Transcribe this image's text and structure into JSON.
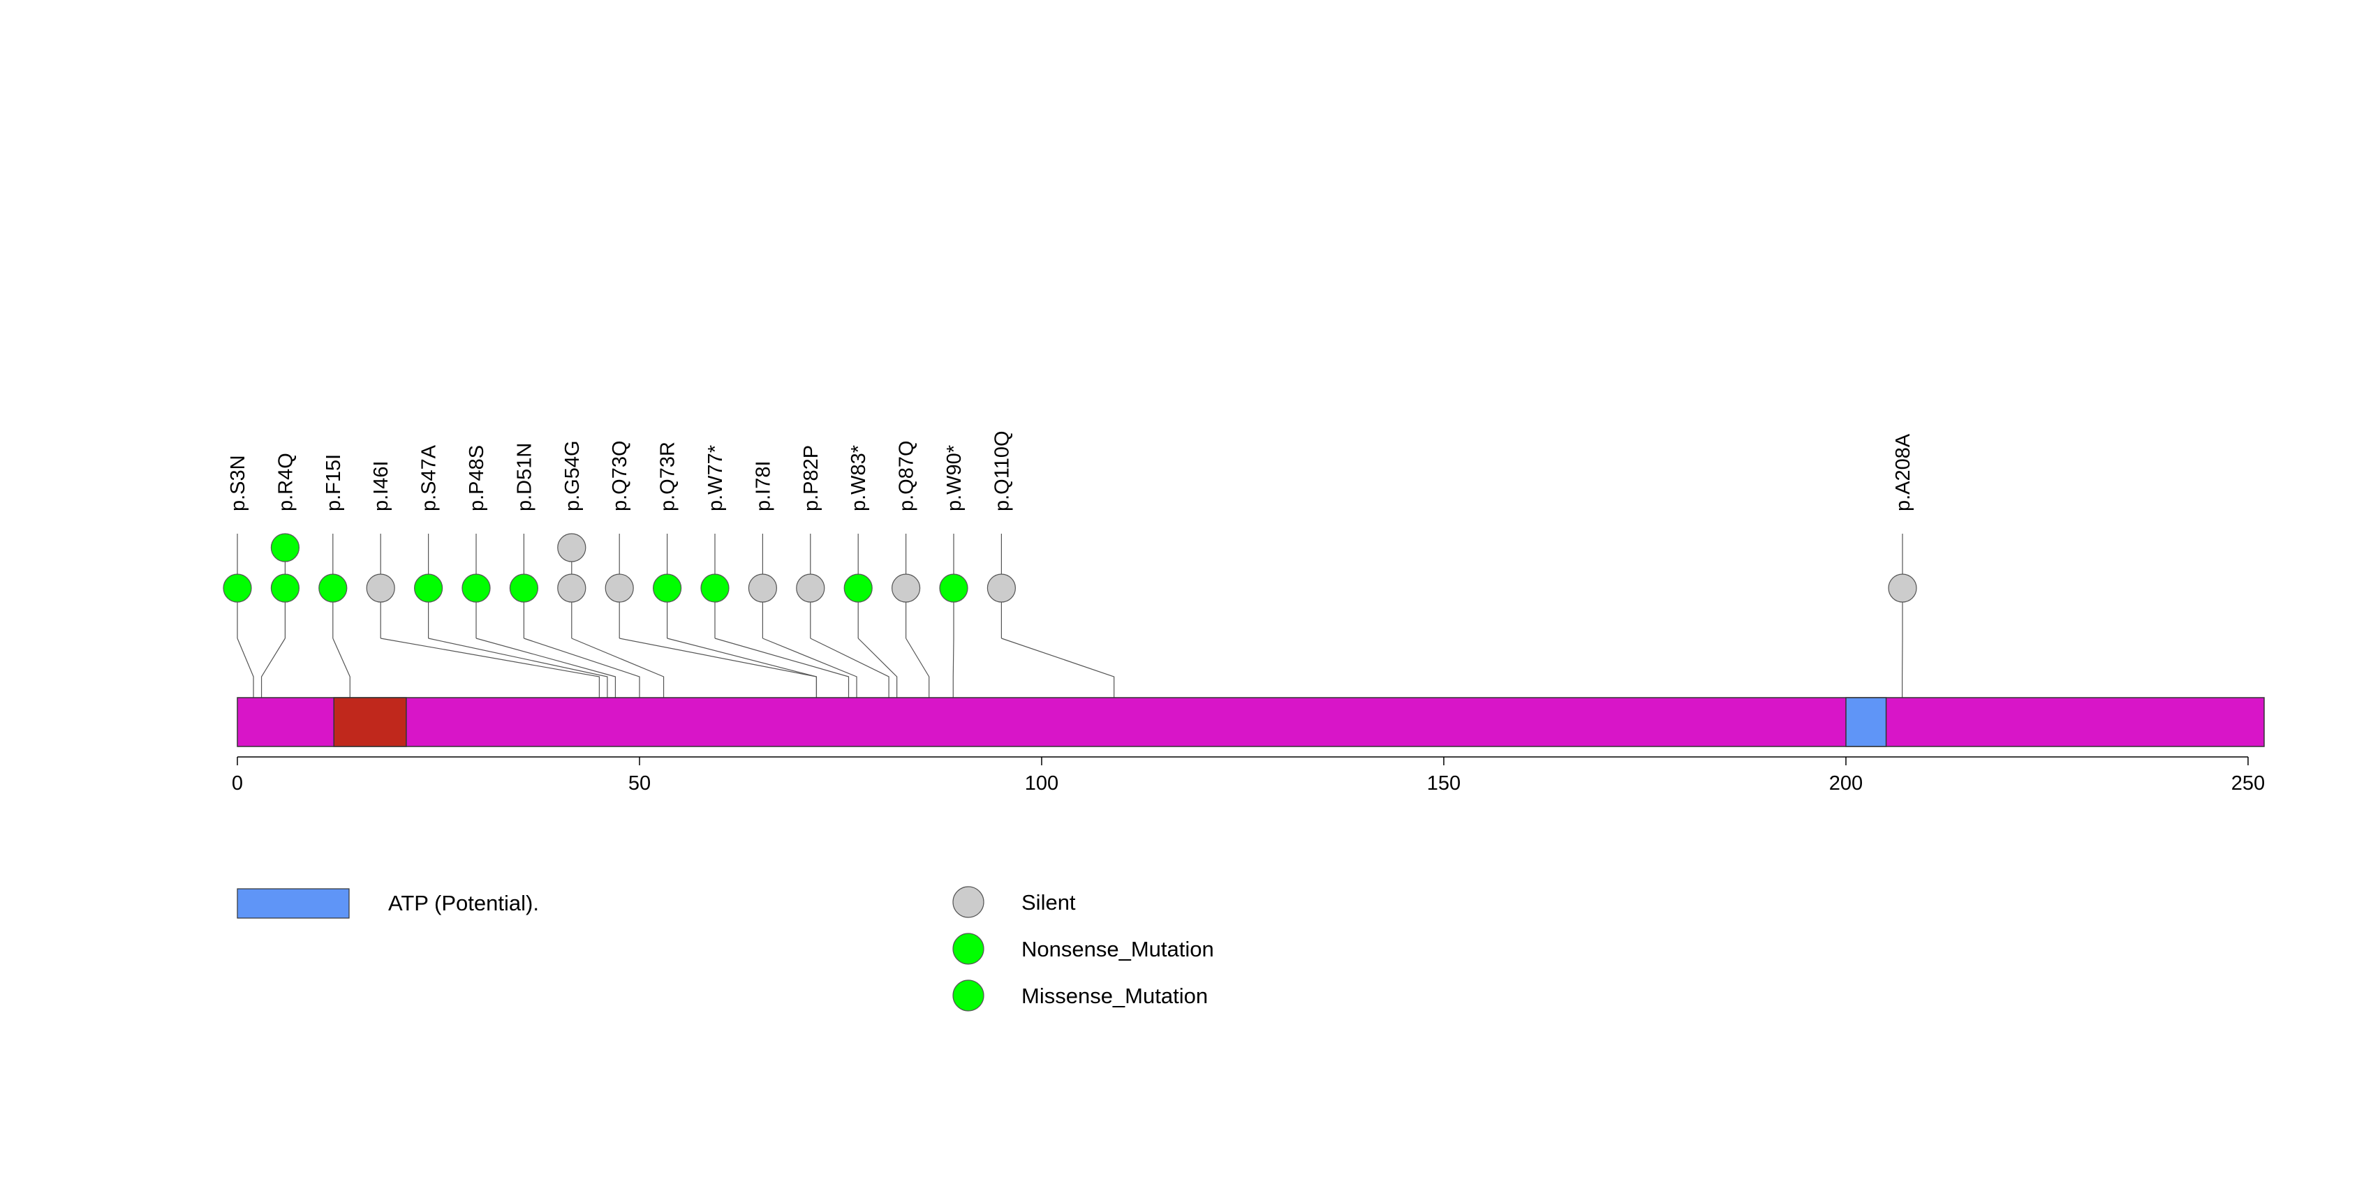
{
  "chart_data": {
    "type": "lollipop",
    "title": "",
    "x_axis": {
      "min": 0,
      "max": 252,
      "ticks": [
        0,
        50,
        100,
        150,
        200,
        250
      ]
    },
    "protein": {
      "length": 252,
      "color": "#d815c8",
      "domains": [
        {
          "name": "",
          "start": 12,
          "end": 21,
          "color": "#c0281c"
        },
        {
          "name": "ATP (Potential).",
          "start": 200,
          "end": 205,
          "color": "#5f95f7"
        }
      ]
    },
    "mutations": [
      {
        "label": "p.S3N",
        "position": 2,
        "stack": [
          {
            "type": "Missense_Mutation"
          }
        ]
      },
      {
        "label": "p.R4Q",
        "position": 3,
        "stack": [
          {
            "type": "Missense_Mutation"
          },
          {
            "type": "Missense_Mutation"
          }
        ]
      },
      {
        "label": "p.F15I",
        "position": 14,
        "stack": [
          {
            "type": "Missense_Mutation"
          }
        ]
      },
      {
        "label": "p.I46I",
        "position": 45,
        "stack": [
          {
            "type": "Silent"
          }
        ]
      },
      {
        "label": "p.S47A",
        "position": 46,
        "stack": [
          {
            "type": "Missense_Mutation"
          }
        ]
      },
      {
        "label": "p.P48S",
        "position": 47,
        "stack": [
          {
            "type": "Missense_Mutation"
          }
        ]
      },
      {
        "label": "p.D51N",
        "position": 50,
        "stack": [
          {
            "type": "Missense_Mutation"
          }
        ]
      },
      {
        "label": "p.G54G",
        "position": 53,
        "stack": [
          {
            "type": "Silent"
          },
          {
            "type": "Silent"
          }
        ]
      },
      {
        "label": "p.Q73Q",
        "position": 72,
        "stack": [
          {
            "type": "Silent"
          }
        ]
      },
      {
        "label": "p.Q73R",
        "position": 72,
        "stack": [
          {
            "type": "Missense_Mutation"
          }
        ]
      },
      {
        "label": "p.W77*",
        "position": 76,
        "stack": [
          {
            "type": "Nonsense_Mutation"
          }
        ]
      },
      {
        "label": "p.I78I",
        "position": 77,
        "stack": [
          {
            "type": "Silent"
          }
        ]
      },
      {
        "label": "p.P82P",
        "position": 81,
        "stack": [
          {
            "type": "Silent"
          }
        ]
      },
      {
        "label": "p.W83*",
        "position": 82,
        "stack": [
          {
            "type": "Nonsense_Mutation"
          }
        ]
      },
      {
        "label": "p.Q87Q",
        "position": 86,
        "stack": [
          {
            "type": "Silent"
          }
        ]
      },
      {
        "label": "p.W90*",
        "position": 89,
        "stack": [
          {
            "type": "Nonsense_Mutation"
          }
        ]
      },
      {
        "label": "p.Q110Q",
        "position": 109,
        "stack": [
          {
            "type": "Silent"
          }
        ]
      },
      {
        "label": "p.A208A",
        "position": 207,
        "stack": [
          {
            "type": "Silent"
          }
        ]
      }
    ],
    "mutation_colors": {
      "Silent": "#cccccc",
      "Nonsense_Mutation": "#00ff00",
      "Missense_Mutation": "#00ff00"
    },
    "legend": {
      "domains": [
        {
          "label": "ATP (Potential).",
          "color": "#5f95f7"
        }
      ],
      "mutation_types": [
        {
          "label": "Silent",
          "color": "#cccccc"
        },
        {
          "label": "Nonsense_Mutation",
          "color": "#00ff00"
        },
        {
          "label": "Missense_Mutation",
          "color": "#00ff00"
        }
      ]
    }
  }
}
